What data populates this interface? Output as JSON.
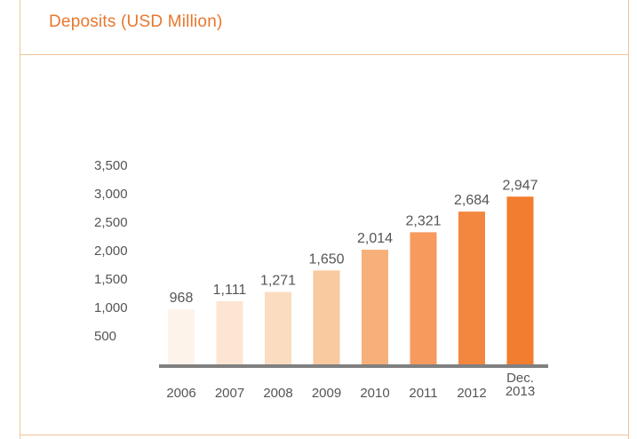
{
  "title": "Deposits (USD Million)",
  "chart_data": {
    "type": "bar",
    "title": "Deposits (USD Million)",
    "categories": [
      "2006",
      "2007",
      "2008",
      "2009",
      "2010",
      "2011",
      "2012",
      "Dec. 2013"
    ],
    "category_lines": [
      [
        "2006"
      ],
      [
        "2007"
      ],
      [
        "2008"
      ],
      [
        "2009"
      ],
      [
        "2010"
      ],
      [
        "2011"
      ],
      [
        "2012"
      ],
      [
        "Dec.",
        "2013"
      ]
    ],
    "values": [
      968,
      1111,
      1271,
      1650,
      2014,
      2321,
      2684,
      2947
    ],
    "value_labels": [
      "968",
      "1,111",
      "1,271",
      "1,650",
      "2,014",
      "2,321",
      "2,684",
      "2,947"
    ],
    "y_ticks": [
      "500",
      "1,000",
      "1,500",
      "2,000",
      "2,500",
      "3,000",
      "3,500"
    ],
    "ylim": [
      0,
      3500
    ],
    "grid": false,
    "legend": "none",
    "colors": [
      "#fdf3ea",
      "#fce6d3",
      "#fbdcc0",
      "#f9c9a0",
      "#f7b07a",
      "#f69a5d",
      "#f4873f",
      "#f27d2e"
    ],
    "axis_color": "#808080"
  }
}
